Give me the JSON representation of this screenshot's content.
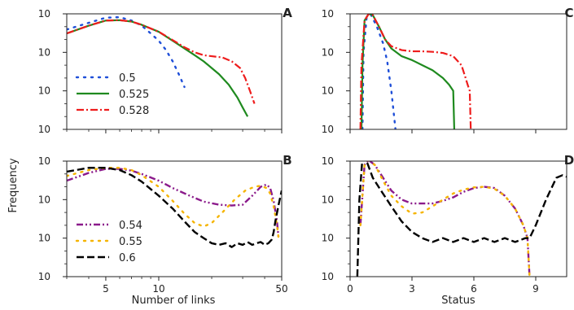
{
  "ylabel": "Frequency",
  "xlabel_left": "Number of links",
  "xlabel_right": "Status",
  "y_ticks": [
    {
      "exp": 0,
      "base": "10",
      "sup": "0"
    },
    {
      "exp": -3,
      "base": "10",
      "sup": "−3"
    },
    {
      "exp": -6,
      "base": "10",
      "sup": "−6"
    },
    {
      "exp": -9,
      "base": "10",
      "sup": "−9"
    }
  ],
  "colors": {
    "s0_5": "#1f4fd8",
    "s0_525": "#1f8a1f",
    "s0_528": "#ee1c1c",
    "s0_54": "#8b1a8b",
    "s0_55": "#f5b400",
    "s0_6": "#000000"
  },
  "chart_data": [
    {
      "panel": "A",
      "type": "line",
      "xscale": "log",
      "yscale": "log",
      "xlim": [
        3,
        50
      ],
      "ylim": [
        1e-09,
        1
      ],
      "x_ticks": [],
      "legend": "lower-left",
      "series": [
        {
          "name": "0.5",
          "color": "#1f4fd8",
          "style": "dotted",
          "points": [
            [
              3,
              0.06
            ],
            [
              4,
              0.2
            ],
            [
              5,
              0.5
            ],
            [
              6,
              0.55
            ],
            [
              7,
              0.3
            ],
            [
              8,
              0.12
            ],
            [
              9,
              0.03
            ],
            [
              10,
              0.008
            ],
            [
              11,
              0.0015
            ],
            [
              12,
              0.0002
            ],
            [
              13,
              2e-05
            ],
            [
              14,
              2e-06
            ]
          ]
        },
        {
          "name": "0.525",
          "color": "#1f8a1f",
          "style": "solid",
          "points": [
            [
              3,
              0.03
            ],
            [
              4,
              0.12
            ],
            [
              5,
              0.3
            ],
            [
              6,
              0.32
            ],
            [
              7,
              0.25
            ],
            [
              8,
              0.14
            ],
            [
              10,
              0.04
            ],
            [
              12,
              0.008
            ],
            [
              14,
              0.002
            ],
            [
              16,
              0.0006
            ],
            [
              18,
              0.0002
            ],
            [
              20,
              6e-05
            ],
            [
              22,
              2e-05
            ],
            [
              25,
              3e-06
            ],
            [
              28,
              3e-07
            ],
            [
              30,
              5e-08
            ],
            [
              32,
              1e-08
            ]
          ]
        },
        {
          "name": "0.528",
          "color": "#ee1c1c",
          "style": "dashdot",
          "points": [
            [
              3,
              0.03
            ],
            [
              4,
              0.12
            ],
            [
              5,
              0.3
            ],
            [
              6,
              0.32
            ],
            [
              7,
              0.25
            ],
            [
              8,
              0.14
            ],
            [
              10,
              0.04
            ],
            [
              12,
              0.009
            ],
            [
              14,
              0.0025
            ],
            [
              16,
              0.001
            ],
            [
              18,
              0.0006
            ],
            [
              20,
              0.0005
            ],
            [
              23,
              0.0004
            ],
            [
              26,
              0.0002
            ],
            [
              29,
              6e-05
            ],
            [
              31,
              1e-05
            ],
            [
              33,
              1e-06
            ],
            [
              35,
              1e-07
            ]
          ]
        }
      ]
    },
    {
      "panel": "B",
      "type": "line",
      "xscale": "log",
      "yscale": "log",
      "xlim": [
        3,
        50
      ],
      "ylim": [
        1e-09,
        1
      ],
      "x_ticks": [
        5,
        10,
        50
      ],
      "legend": "lower-left",
      "series": [
        {
          "name": "0.54",
          "color": "#8b1a8b",
          "style": "dashdotdot",
          "points": [
            [
              3,
              0.03
            ],
            [
              4,
              0.12
            ],
            [
              5,
              0.25
            ],
            [
              6,
              0.25
            ],
            [
              7,
              0.18
            ],
            [
              8,
              0.1
            ],
            [
              10,
              0.03
            ],
            [
              12,
              0.008
            ],
            [
              15,
              0.002
            ],
            [
              18,
              0.0007
            ],
            [
              22,
              0.0004
            ],
            [
              26,
              0.00035
            ],
            [
              30,
              0.0004
            ],
            [
              34,
              0.002
            ],
            [
              38,
              0.01
            ],
            [
              41,
              0.015
            ],
            [
              43,
              0.008
            ],
            [
              45,
              0.0008
            ],
            [
              47,
              2e-05
            ],
            [
              48,
              1e-06
            ]
          ]
        },
        {
          "name": "0.55",
          "color": "#f5b400",
          "style": "dotted",
          "points": [
            [
              3,
              0.07
            ],
            [
              4,
              0.2
            ],
            [
              5,
              0.3
            ],
            [
              6,
              0.3
            ],
            [
              7,
              0.2
            ],
            [
              8,
              0.08
            ],
            [
              10,
              0.01
            ],
            [
              12,
              0.0008
            ],
            [
              14,
              8e-05
            ],
            [
              16,
              1.5e-05
            ],
            [
              18,
              8e-06
            ],
            [
              20,
              1.5e-05
            ],
            [
              23,
              0.0001
            ],
            [
              27,
              0.001
            ],
            [
              31,
              0.005
            ],
            [
              35,
              0.01
            ],
            [
              38,
              0.012
            ],
            [
              41,
              0.008
            ],
            [
              43,
              0.003
            ],
            [
              45,
              0.0003
            ],
            [
              47,
              1e-05
            ],
            [
              48,
              1e-06
            ]
          ]
        },
        {
          "name": "0.6",
          "color": "#000000",
          "style": "dashed",
          "points": [
            [
              3,
              0.15
            ],
            [
              4,
              0.3
            ],
            [
              5,
              0.3
            ],
            [
              6,
              0.2
            ],
            [
              7,
              0.08
            ],
            [
              8,
              0.025
            ],
            [
              10,
              0.002
            ],
            [
              12,
              0.0002
            ],
            [
              14,
              2e-05
            ],
            [
              16,
              3e-06
            ],
            [
              18,
              1e-06
            ],
            [
              20,
              4e-07
            ],
            [
              22,
              3e-07
            ],
            [
              24,
              4e-07
            ],
            [
              26,
              2e-07
            ],
            [
              28,
              4e-07
            ],
            [
              30,
              3e-07
            ],
            [
              32,
              5e-07
            ],
            [
              34,
              3e-07
            ],
            [
              36,
              4e-07
            ],
            [
              38,
              5e-07
            ],
            [
              40,
              3e-07
            ],
            [
              42,
              4e-07
            ],
            [
              44,
              8e-07
            ],
            [
              45,
              3e-06
            ],
            [
              46,
              2e-05
            ],
            [
              48,
              0.0004
            ],
            [
              50,
              0.005
            ]
          ]
        }
      ]
    },
    {
      "panel": "C",
      "type": "line",
      "xscale": "linear",
      "yscale": "log",
      "xlim": [
        0,
        10.5
      ],
      "ylim": [
        1e-09,
        1
      ],
      "x_ticks": [],
      "series": [
        {
          "name": "0.5",
          "color": "#1f4fd8",
          "style": "dotted",
          "points": [
            [
              0.6,
              1e-09
            ],
            [
              0.65,
              0.001
            ],
            [
              0.8,
              0.5
            ],
            [
              1.0,
              0.9
            ],
            [
              1.3,
              0.1
            ],
            [
              1.6,
              0.005
            ],
            [
              1.8,
              0.0002
            ],
            [
              2.0,
              1e-06
            ],
            [
              2.2,
              1e-09
            ]
          ]
        },
        {
          "name": "0.525",
          "color": "#1f8a1f",
          "style": "solid",
          "points": [
            [
              0.55,
              1e-09
            ],
            [
              0.6,
              0.0001
            ],
            [
              0.7,
              0.3
            ],
            [
              0.9,
              1
            ],
            [
              1.1,
              0.8
            ],
            [
              1.4,
              0.1
            ],
            [
              1.7,
              0.01
            ],
            [
              2.0,
              0.002
            ],
            [
              2.5,
              0.0005
            ],
            [
              3.0,
              0.00025
            ],
            [
              3.5,
              0.0001
            ],
            [
              4.0,
              4e-05
            ],
            [
              4.5,
              1e-05
            ],
            [
              4.8,
              3e-06
            ],
            [
              5.0,
              1e-06
            ],
            [
              5.05,
              1e-09
            ]
          ]
        },
        {
          "name": "0.528",
          "color": "#ee1c1c",
          "style": "dashdot",
          "points": [
            [
              0.5,
              1e-09
            ],
            [
              0.55,
              0.0001
            ],
            [
              0.7,
              0.3
            ],
            [
              0.9,
              1
            ],
            [
              1.1,
              0.8
            ],
            [
              1.4,
              0.1
            ],
            [
              1.7,
              0.01
            ],
            [
              2.0,
              0.003
            ],
            [
              2.5,
              0.0015
            ],
            [
              3.0,
              0.0012
            ],
            [
              3.5,
              0.0012
            ],
            [
              4.0,
              0.0011
            ],
            [
              4.5,
              0.0009
            ],
            [
              5.0,
              0.0005
            ],
            [
              5.4,
              0.0001
            ],
            [
              5.6,
              1e-05
            ],
            [
              5.7,
              3e-06
            ],
            [
              5.8,
              1e-06
            ],
            [
              5.85,
              1e-09
            ]
          ]
        }
      ]
    },
    {
      "panel": "D",
      "type": "line",
      "xscale": "linear",
      "yscale": "log",
      "xlim": [
        0,
        10.5
      ],
      "ylim": [
        1e-09,
        1
      ],
      "x_ticks": [
        0,
        3,
        6,
        9
      ],
      "series": [
        {
          "name": "0.54",
          "color": "#8b1a8b",
          "style": "dashdotdot",
          "points": [
            [
              0.5,
              1e-05
            ],
            [
              0.7,
              0.5
            ],
            [
              0.9,
              1.2
            ],
            [
              1.2,
              0.5
            ],
            [
              1.6,
              0.05
            ],
            [
              2.0,
              0.005
            ],
            [
              2.5,
              0.001
            ],
            [
              3.0,
              0.0005
            ],
            [
              3.5,
              0.0005
            ],
            [
              4.0,
              0.0005
            ],
            [
              4.5,
              0.0008
            ],
            [
              5.0,
              0.0015
            ],
            [
              5.5,
              0.004
            ],
            [
              6.0,
              0.008
            ],
            [
              6.5,
              0.01
            ],
            [
              7.0,
              0.008
            ],
            [
              7.5,
              0.002
            ],
            [
              8.0,
              0.0002
            ],
            [
              8.4,
              1e-05
            ],
            [
              8.6,
              1e-06
            ],
            [
              8.7,
              1e-09
            ]
          ]
        },
        {
          "name": "0.55",
          "color": "#f5b400",
          "style": "dotted",
          "points": [
            [
              0.5,
              1e-05
            ],
            [
              0.7,
              0.5
            ],
            [
              0.9,
              1.2
            ],
            [
              1.2,
              0.5
            ],
            [
              1.6,
              0.03
            ],
            [
              2.0,
              0.002
            ],
            [
              2.5,
              0.0003
            ],
            [
              3.0,
              8e-05
            ],
            [
              3.5,
              0.0001
            ],
            [
              4.0,
              0.0003
            ],
            [
              4.5,
              0.001
            ],
            [
              5.0,
              0.003
            ],
            [
              5.5,
              0.006
            ],
            [
              6.0,
              0.009
            ],
            [
              6.5,
              0.01
            ],
            [
              7.0,
              0.007
            ],
            [
              7.5,
              0.002
            ],
            [
              8.0,
              0.0002
            ],
            [
              8.4,
              1e-05
            ],
            [
              8.6,
              1e-06
            ],
            [
              8.7,
              1e-09
            ]
          ]
        },
        {
          "name": "0.6",
          "color": "#000000",
          "style": "dashed",
          "points": [
            [
              0.35,
              1e-09
            ],
            [
              0.45,
              0.001
            ],
            [
              0.6,
              2
            ],
            [
              0.8,
              1
            ],
            [
              1.1,
              0.05
            ],
            [
              1.5,
              0.005
            ],
            [
              2.0,
              0.0003
            ],
            [
              2.5,
              2e-05
            ],
            [
              3.0,
              3e-06
            ],
            [
              3.5,
              1e-06
            ],
            [
              4.0,
              5e-07
            ],
            [
              4.5,
              1e-06
            ],
            [
              5.0,
              5e-07
            ],
            [
              5.5,
              1e-06
            ],
            [
              6.0,
              5e-07
            ],
            [
              6.5,
              1e-06
            ],
            [
              7.0,
              5e-07
            ],
            [
              7.5,
              1e-06
            ],
            [
              8.0,
              5e-07
            ],
            [
              8.5,
              1e-06
            ],
            [
              8.7,
              1e-06
            ],
            [
              9.0,
              1e-05
            ],
            [
              9.5,
              0.001
            ],
            [
              10.0,
              0.05
            ],
            [
              10.3,
              0.08
            ],
            [
              10.5,
              0.06
            ]
          ]
        }
      ]
    }
  ]
}
